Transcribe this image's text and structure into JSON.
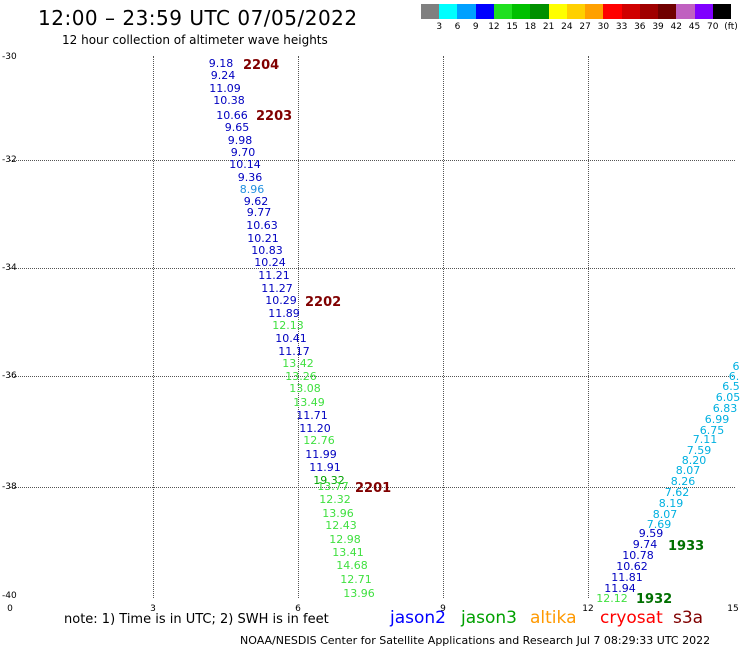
{
  "header": {
    "title": "12:00 – 23:59 UTC 07/05/2022",
    "subtitle": "12 hour collection of altimeter wave heights"
  },
  "legend": {
    "colors": [
      "#808080",
      "#00ffff",
      "#00a0ff",
      "#0000ff",
      "#20e020",
      "#00c000",
      "#009000",
      "#ffff00",
      "#ffd000",
      "#ffa000",
      "#ff0000",
      "#d00000",
      "#a00000",
      "#700000",
      "#c060c0",
      "#8000ff",
      "#000000"
    ],
    "labels": [
      "3",
      "6",
      "9",
      "12",
      "15",
      "18",
      "21",
      "24",
      "27",
      "30",
      "33",
      "36",
      "39",
      "42",
      "45",
      "70",
      "(ft)"
    ]
  },
  "axes": {
    "y_labels": [
      "-30",
      "-32",
      "-34",
      "-36",
      "-38",
      "-40"
    ],
    "x_labels": [
      "0",
      "3",
      "6",
      "9",
      "12",
      "15"
    ]
  },
  "tracks": [
    {
      "label": "2204",
      "color": "#800000"
    },
    {
      "label": "2203",
      "color": "#800000"
    },
    {
      "label": "2202",
      "color": "#800000"
    },
    {
      "label": "2201",
      "color": "#800000"
    },
    {
      "label": "1933",
      "color": "#007000"
    },
    {
      "label": "1932",
      "color": "#007000"
    }
  ],
  "points": [
    {
      "v": "9.18",
      "c": "#0000c0"
    },
    {
      "v": "9.24",
      "c": "#0000c0"
    },
    {
      "v": "11.09",
      "c": "#0000c0"
    },
    {
      "v": "10.38",
      "c": "#0000c0"
    },
    {
      "v": "10.66",
      "c": "#0000c0"
    },
    {
      "v": "9.65",
      "c": "#0000c0"
    },
    {
      "v": "9.98",
      "c": "#0000c0"
    },
    {
      "v": "9.70",
      "c": "#0000c0"
    },
    {
      "v": "10.14",
      "c": "#0000c0"
    },
    {
      "v": "9.36",
      "c": "#0000c0"
    },
    {
      "v": "8.96",
      "c": "#2090e0"
    },
    {
      "v": "9.62",
      "c": "#0000c0"
    },
    {
      "v": "9.77",
      "c": "#0000c0"
    },
    {
      "v": "10.63",
      "c": "#0000c0"
    },
    {
      "v": "10.21",
      "c": "#0000c0"
    },
    {
      "v": "10.83",
      "c": "#0000c0"
    },
    {
      "v": "10.24",
      "c": "#0000c0"
    },
    {
      "v": "11.21",
      "c": "#0000c0"
    },
    {
      "v": "11.27",
      "c": "#0000c0"
    },
    {
      "v": "10.29",
      "c": "#0000c0"
    },
    {
      "v": "11.89",
      "c": "#0000c0"
    },
    {
      "v": "12.13",
      "c": "#40e040"
    },
    {
      "v": "10.41",
      "c": "#0000c0"
    },
    {
      "v": "11.17",
      "c": "#0000c0"
    },
    {
      "v": "13.42",
      "c": "#40e040"
    },
    {
      "v": "13.26",
      "c": "#40e040"
    },
    {
      "v": "13.08",
      "c": "#40e040"
    },
    {
      "v": "13.49",
      "c": "#40e040"
    },
    {
      "v": "11.71",
      "c": "#0000c0"
    },
    {
      "v": "11.20",
      "c": "#0000c0"
    },
    {
      "v": "12.76",
      "c": "#40e040"
    },
    {
      "v": "11.99",
      "c": "#0000c0"
    },
    {
      "v": "11.91",
      "c": "#0000c0"
    },
    {
      "v": "19.32",
      "c": "#00a000"
    },
    {
      "v": "13.77",
      "c": "#40e040"
    },
    {
      "v": "12.32",
      "c": "#40e040"
    },
    {
      "v": "13.96",
      "c": "#40e040"
    },
    {
      "v": "12.43",
      "c": "#40e040"
    },
    {
      "v": "12.98",
      "c": "#40e040"
    },
    {
      "v": "13.41",
      "c": "#40e040"
    },
    {
      "v": "14.68",
      "c": "#40e040"
    },
    {
      "v": "12.71",
      "c": "#40e040"
    },
    {
      "v": "13.96",
      "c": "#40e040"
    },
    {
      "v": "6",
      "c": "#00b0e0"
    },
    {
      "v": "6.",
      "c": "#00b0e0"
    },
    {
      "v": "6.5",
      "c": "#00b0e0"
    },
    {
      "v": "6.05",
      "c": "#00b0e0"
    },
    {
      "v": "6.83",
      "c": "#00b0e0"
    },
    {
      "v": "6.99",
      "c": "#00b0e0"
    },
    {
      "v": "6.75",
      "c": "#00b0e0"
    },
    {
      "v": "7.11",
      "c": "#00b0e0"
    },
    {
      "v": "7.59",
      "c": "#00b0e0"
    },
    {
      "v": "8.20",
      "c": "#00b0e0"
    },
    {
      "v": "8.07",
      "c": "#00b0e0"
    },
    {
      "v": "8.26",
      "c": "#00b0e0"
    },
    {
      "v": "7.62",
      "c": "#00b0e0"
    },
    {
      "v": "8.19",
      "c": "#00b0e0"
    },
    {
      "v": "8.07",
      "c": "#00b0e0"
    },
    {
      "v": "7.69",
      "c": "#00b0e0"
    },
    {
      "v": "9.59",
      "c": "#0000c0"
    },
    {
      "v": "9.74",
      "c": "#0000c0"
    },
    {
      "v": "10.78",
      "c": "#0000c0"
    },
    {
      "v": "10.62",
      "c": "#0000c0"
    },
    {
      "v": "11.81",
      "c": "#0000c0"
    },
    {
      "v": "11.94",
      "c": "#0000c0"
    },
    {
      "v": "12.12",
      "c": "#40e040"
    }
  ],
  "footer": {
    "note": "note:  1) Time is in UTC; 2) SWH is in feet",
    "satellites": [
      {
        "name": "jason2",
        "color": "#0000ff"
      },
      {
        "name": "jason3",
        "color": "#00a000"
      },
      {
        "name": "altika",
        "color": "#ff9900"
      },
      {
        "name": "cryosat",
        "color": "#ff0000"
      },
      {
        "name": "s3a",
        "color": "#800000"
      }
    ],
    "credit": "NOAA/NESDIS Center for Satellite Applications and Research    Jul  7 08:29:33 UTC 2022"
  }
}
